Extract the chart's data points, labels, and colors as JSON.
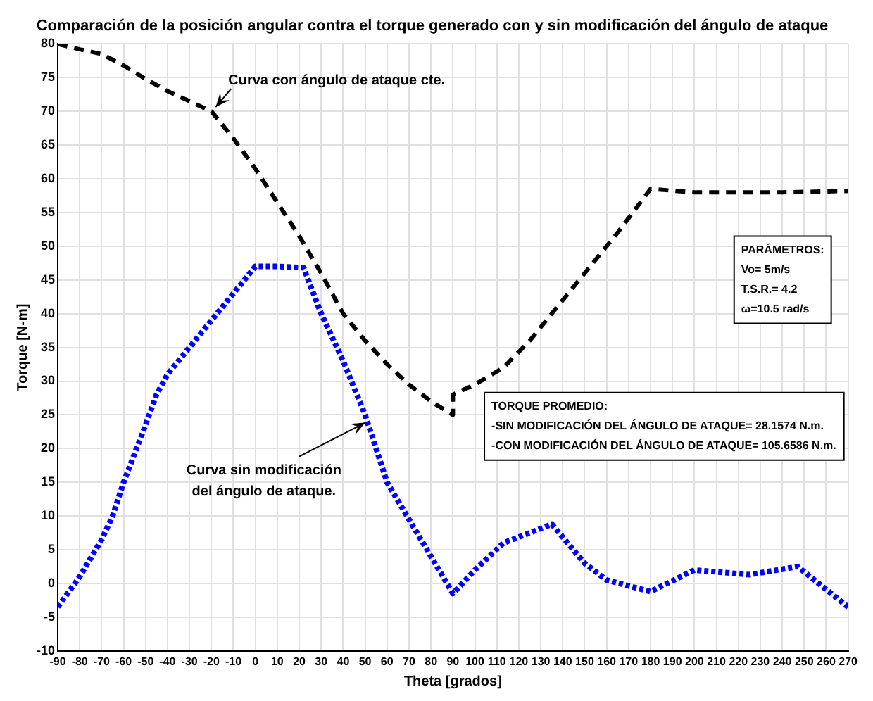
{
  "chart_data": {
    "type": "line",
    "title": "Comparación de la posición angular contra el torque generado con y sin modificación del ángulo de ataque",
    "xlabel": "Theta [grados]",
    "ylabel": "Torque [N-m]",
    "xlim": [
      -90,
      270
    ],
    "xticks": [
      -90,
      -80,
      -70,
      -60,
      -50,
      -40,
      -30,
      -20,
      -10,
      0,
      10,
      20,
      30,
      40,
      50,
      60,
      70,
      80,
      90,
      100,
      110,
      120,
      130,
      140,
      150,
      160,
      170,
      180,
      190,
      200,
      210,
      220,
      230,
      240,
      250,
      260,
      270
    ],
    "ylim": [
      -10,
      80
    ],
    "yticks": [
      -10,
      -5,
      0,
      5,
      10,
      15,
      20,
      25,
      30,
      35,
      40,
      45,
      50,
      55,
      60,
      65,
      70,
      75,
      80
    ],
    "grid": true,
    "legend": false,
    "marker": "none",
    "series": [
      {
        "color": "#000000",
        "line_style": "dashed",
        "x": [
          -90,
          -80,
          -70,
          -60,
          -50,
          -40,
          -30,
          -20,
          -10,
          0,
          10,
          20,
          30,
          40,
          50,
          60,
          70,
          80,
          90,
          90,
          100,
          113,
          125,
          135,
          150,
          165,
          180,
          200,
          220,
          240,
          270
        ],
        "values": [
          80,
          79.2,
          78.5,
          76.8,
          74.8,
          73,
          71.5,
          70,
          66,
          61.5,
          56.5,
          51.5,
          46,
          40,
          36,
          32.5,
          29.5,
          27,
          25,
          28,
          29.5,
          32,
          36,
          40,
          46,
          52,
          58.5,
          58,
          58,
          58,
          58.2
        ]
      },
      {
        "color": "#0000ff",
        "line_style": "dotted",
        "x": [
          -90,
          -80,
          -70,
          -65,
          -60,
          -50,
          -45,
          -40,
          -30,
          -20,
          -10,
          0,
          10,
          22,
          30,
          40,
          50,
          60,
          70,
          80,
          90,
          100,
          113,
          125,
          135,
          150,
          160,
          180,
          200,
          225,
          247,
          270
        ],
        "values": [
          -3.5,
          1,
          6.5,
          10,
          15,
          23.5,
          28,
          31,
          35,
          39,
          43,
          47,
          47,
          46.8,
          40,
          33,
          25,
          15,
          9.5,
          4,
          -1.5,
          2,
          6,
          7.5,
          8.8,
          3,
          0.5,
          -1.2,
          2,
          1.3,
          2.5,
          -3.5
        ]
      }
    ],
    "annotations": [
      {
        "text": "Curva con ángulo de ataque cte.",
        "x": -20,
        "y": 70
      },
      {
        "text": "Curva sin modificación\ndel ángulo de ataque.",
        "x": 52,
        "y": 23
      },
      "PARÁMETROS:\nVo= 5m/s\nT.S.R.= 4.2\nω=10.5 rad/s",
      "TORQUE PROMEDIO:\n-SIN MODIFICACIÓN DEL ÁNGULO DE ATAQUE= 28.1574 N.m.\n-CON MODIFICACIÓN DEL ÁNGULO DE ATAQUE= 105.6586 N.m."
    ]
  }
}
